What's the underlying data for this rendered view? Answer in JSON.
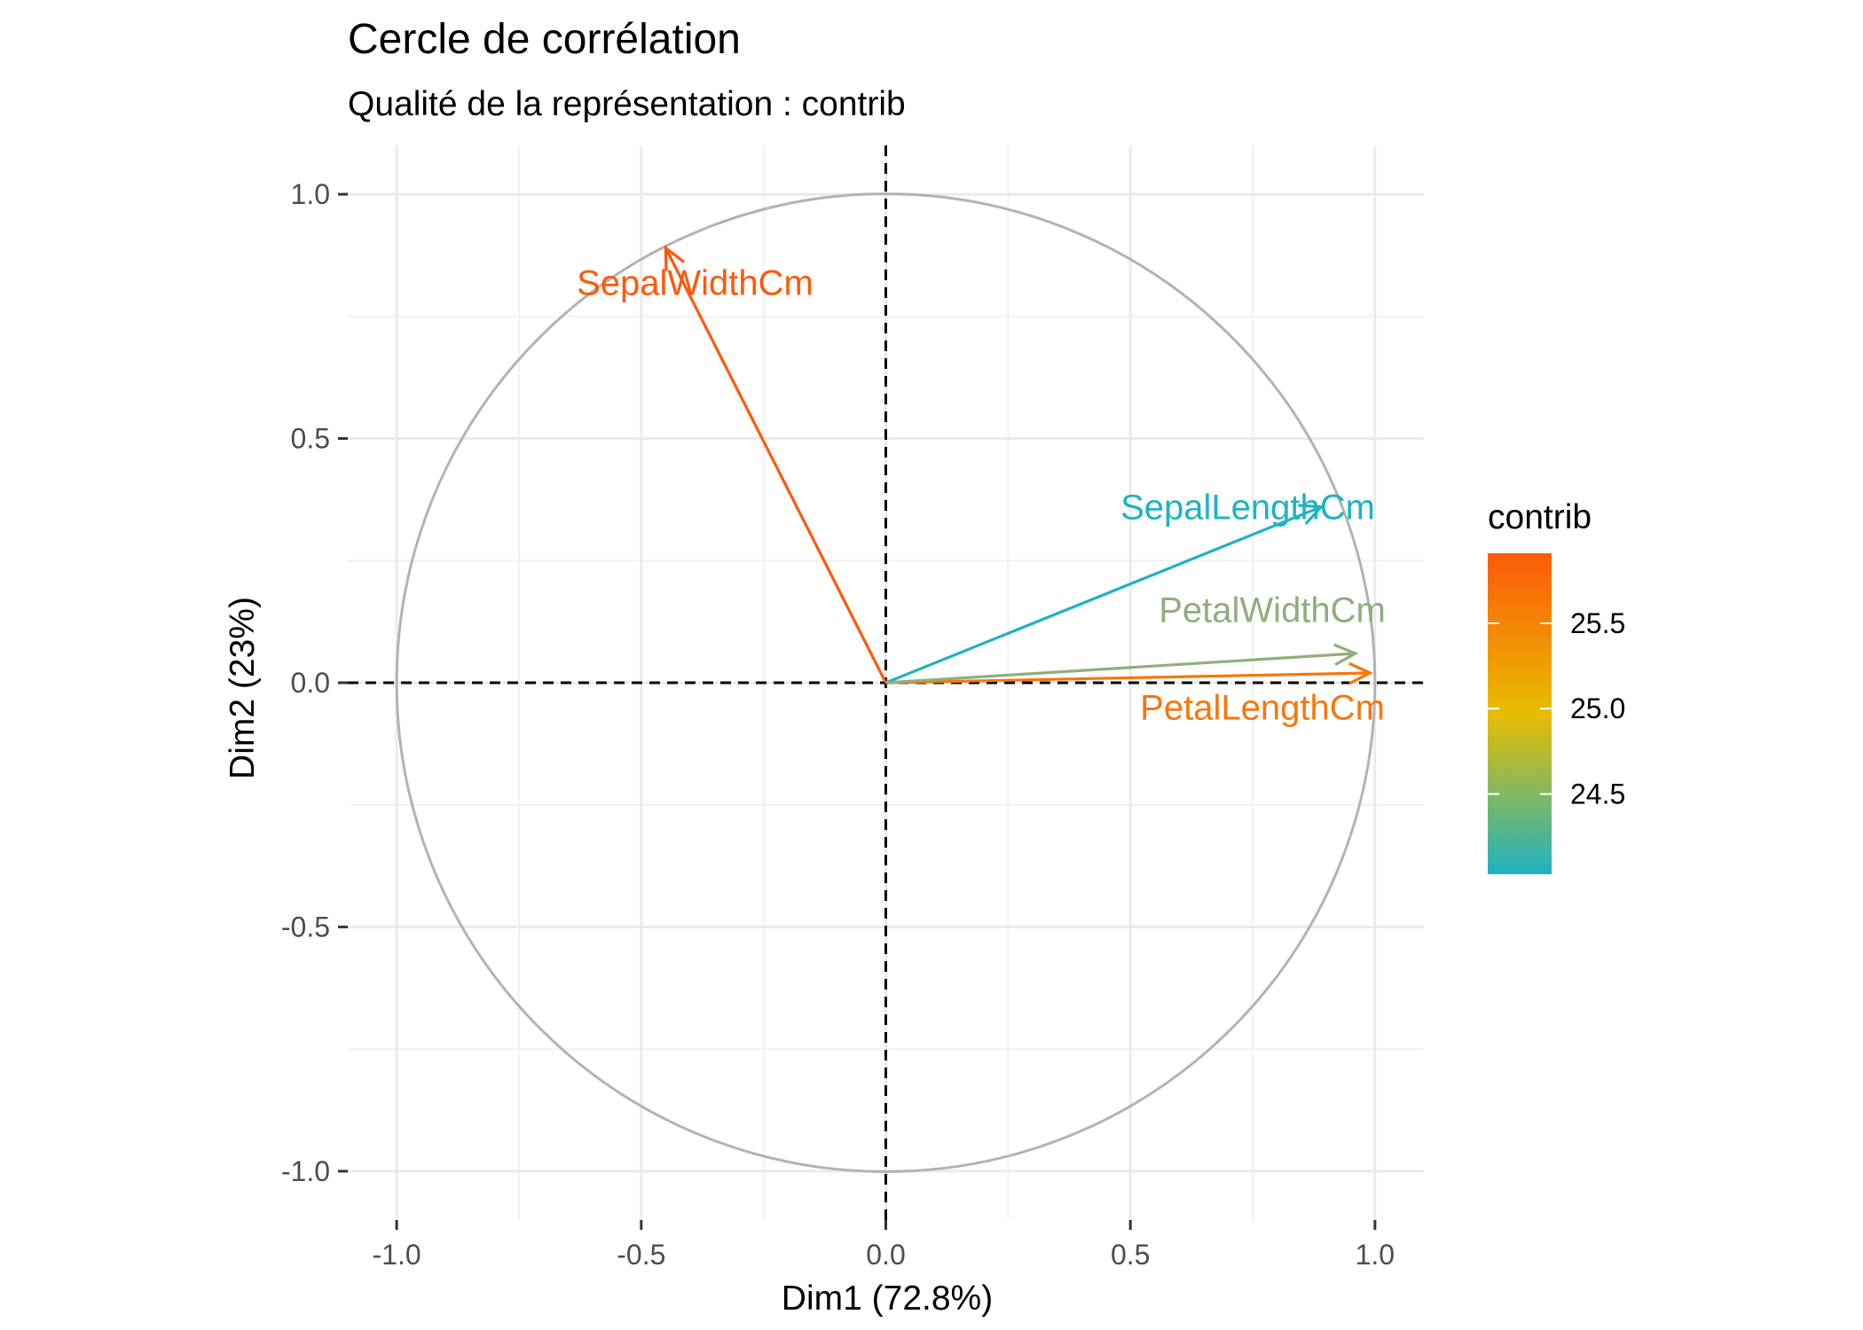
{
  "chart_data": {
    "type": "scatter",
    "title": "Cercle de corrélation",
    "subtitle": "Qualité de la représentation : contrib",
    "xlabel": "Dim1 (72.8%)",
    "ylabel": "Dim2 (23%)",
    "xlim": [
      -1.1,
      1.1
    ],
    "ylim": [
      -1.1,
      1.1
    ],
    "x_ticks": [
      "-1.0",
      "-0.5",
      "0.0",
      "0.5",
      "1.0"
    ],
    "y_ticks": [
      "-1.0",
      "-0.5",
      "0.0",
      "0.5",
      "1.0"
    ],
    "grid": true,
    "unit_circle": true,
    "variables": [
      {
        "name": "SepalLengthCm",
        "x": 0.89,
        "y": 0.36,
        "contrib": 24.03,
        "color": "#1fb2c2"
      },
      {
        "name": "SepalWidthCm",
        "x": -0.45,
        "y": 0.89,
        "contrib": 25.91,
        "color": "#fc5a0a"
      },
      {
        "name": "PetalLengthCm",
        "x": 0.99,
        "y": 0.02,
        "contrib": 25.73,
        "color": "#f7760c"
      },
      {
        "name": "PetalWidthCm",
        "x": 0.96,
        "y": 0.06,
        "contrib": 24.33,
        "color": "#8fae7c"
      }
    ],
    "legend": {
      "title": "contrib",
      "placement": "right",
      "min": 24.03,
      "max": 25.91,
      "ticks": [
        "24.5",
        "25.0",
        "25.5"
      ],
      "tick_values": [
        24.5,
        25.0,
        25.5
      ],
      "gradient_colors": [
        "#1fb2c2",
        "#e8bc00",
        "#fc5a0a"
      ]
    }
  }
}
